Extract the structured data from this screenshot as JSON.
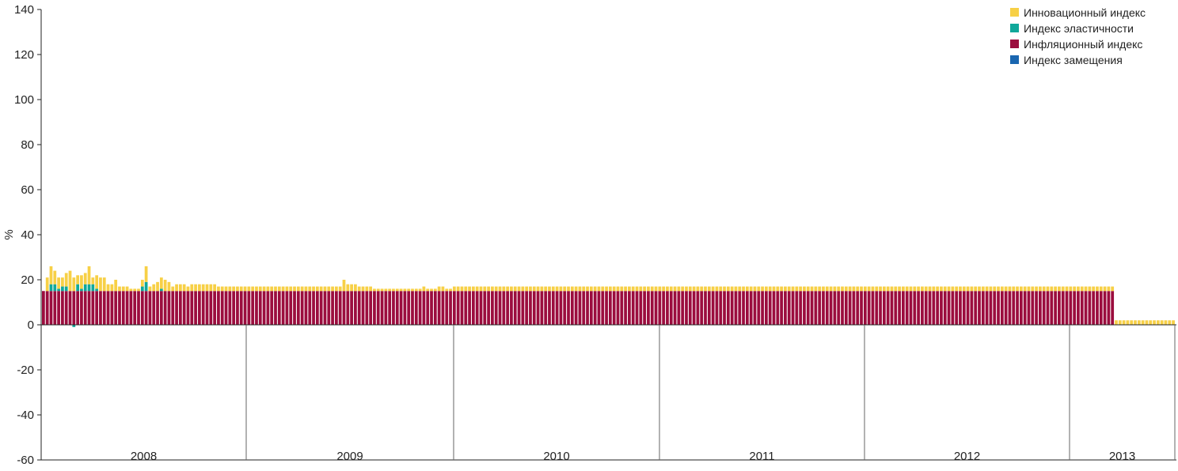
{
  "chart_data": {
    "type": "bar",
    "stacked": true,
    "ylabel": "%",
    "ylim": [
      -60,
      140
    ],
    "yticks": [
      -60,
      -40,
      -20,
      0,
      20,
      40,
      60,
      80,
      100,
      120,
      140
    ],
    "grid": false,
    "legend_position": "top-right",
    "years": [
      "2008",
      "2009",
      "2010",
      "2011",
      "2012",
      "2013"
    ],
    "x_period_note": "weekly bars",
    "series": [
      {
        "name": "Инновационный индекс",
        "color": "#f7d046",
        "values": [
          0,
          6,
          8,
          6,
          5,
          4,
          6,
          9,
          6,
          4,
          6,
          5,
          8,
          3,
          6,
          6,
          6,
          3,
          3,
          5,
          2,
          2,
          2,
          1,
          1,
          1,
          3,
          7,
          2,
          3,
          4,
          5,
          5,
          4,
          2,
          3,
          3,
          3,
          2,
          3,
          3,
          3,
          3,
          3,
          3,
          3,
          2,
          2,
          2,
          2,
          2,
          2,
          2,
          2,
          2,
          2,
          2,
          2,
          2,
          2,
          2,
          2,
          2,
          2,
          2,
          2,
          2,
          2,
          2,
          2,
          2,
          2,
          2,
          2,
          2,
          2,
          2,
          2,
          2,
          5,
          3,
          3,
          3,
          2,
          2,
          2,
          2,
          1,
          1,
          1,
          1,
          1,
          1,
          1,
          1,
          1,
          1,
          1,
          1,
          1,
          2,
          1,
          1,
          1,
          2,
          2,
          1,
          1,
          2,
          2,
          2,
          2,
          2,
          2,
          2,
          2,
          2,
          2,
          2,
          2,
          2,
          2,
          2,
          2,
          2,
          2,
          2,
          2,
          2,
          2,
          2,
          2,
          2,
          2,
          2,
          2,
          2,
          2,
          2,
          2,
          2,
          2,
          2,
          2,
          2,
          2,
          2,
          2,
          2,
          2,
          2,
          2,
          2,
          2,
          2,
          2,
          2,
          2,
          2,
          2,
          2,
          2,
          2,
          2,
          2,
          2,
          2,
          2,
          2,
          2,
          2,
          2,
          2,
          2,
          2,
          2,
          2,
          2,
          2,
          2,
          2,
          2,
          2,
          2,
          2,
          2,
          2,
          2,
          2,
          2,
          2,
          2,
          2,
          2,
          2,
          2,
          2,
          2,
          2,
          2,
          2,
          2,
          2,
          2,
          2,
          2,
          2,
          2,
          2,
          2,
          2,
          2,
          2,
          2,
          2,
          2,
          2,
          2,
          2,
          2,
          2,
          2,
          2,
          2,
          2,
          2,
          2,
          2,
          2,
          2,
          2,
          2,
          2,
          2,
          2,
          2,
          2,
          2,
          2,
          2,
          2,
          2,
          2,
          2,
          2,
          2,
          2,
          2,
          2,
          2,
          2,
          2,
          2,
          2,
          2,
          2,
          2,
          2,
          2,
          2,
          2,
          2,
          2,
          2,
          2,
          2,
          2,
          2,
          2,
          2,
          2,
          2,
          2,
          2,
          2,
          2,
          2,
          2,
          2,
          2,
          2,
          2,
          2,
          2,
          2,
          2,
          2,
          2,
          2,
          2,
          2,
          2,
          2,
          2,
          2,
          2,
          2,
          2
        ]
      },
      {
        "name": "Индекс эластичности",
        "color": "#10a89a",
        "values": [
          0,
          0,
          3,
          3,
          1,
          2,
          2,
          0,
          -1,
          3,
          1,
          3,
          3,
          3,
          1,
          0,
          0,
          0,
          0,
          0,
          0,
          0,
          0,
          0,
          0,
          0,
          2,
          4,
          0,
          0,
          0,
          1,
          0,
          0,
          0,
          0,
          0,
          0,
          0,
          0,
          0,
          0,
          0,
          0,
          0,
          0,
          0,
          0,
          0,
          0,
          0,
          0,
          0,
          0,
          0,
          0,
          0,
          0,
          0,
          0,
          0,
          0,
          0,
          0,
          0,
          0,
          0,
          0,
          0,
          0,
          0,
          0,
          0,
          0,
          0,
          0,
          0,
          0,
          0,
          0,
          0,
          0,
          0,
          0,
          0,
          0,
          0,
          0,
          0,
          0,
          0,
          0,
          0,
          0,
          0,
          0,
          0,
          0,
          0,
          0,
          0,
          0,
          0,
          0,
          0,
          0,
          0,
          0,
          0,
          0,
          0,
          0,
          0,
          0,
          0,
          0,
          0,
          0,
          0,
          0,
          0,
          0,
          0,
          0,
          0,
          0,
          0,
          0,
          0,
          0,
          0,
          0,
          0,
          0,
          0,
          0,
          0,
          0,
          0,
          0,
          0,
          0,
          0,
          0,
          0,
          0,
          0,
          0,
          0,
          0,
          0,
          0,
          0,
          0,
          0,
          0,
          0,
          0,
          0,
          0,
          0,
          0,
          0,
          0,
          0,
          0,
          0,
          0,
          0,
          0,
          0,
          0,
          0,
          0,
          0,
          0,
          0,
          0,
          0,
          0,
          0,
          0,
          0,
          0,
          0,
          0,
          0,
          0,
          0,
          0,
          0,
          0,
          0,
          0,
          0,
          0,
          0,
          0,
          0,
          0,
          0,
          0,
          0,
          0,
          0,
          0,
          0,
          0,
          0,
          0,
          0,
          0,
          0,
          0,
          0,
          0,
          0,
          0,
          0,
          0,
          0,
          0,
          0,
          0,
          0,
          0,
          0,
          0,
          0,
          0,
          0,
          0,
          0,
          0,
          0,
          0,
          0,
          0,
          0,
          0,
          0,
          0,
          0,
          0,
          0,
          0,
          0,
          0,
          0,
          0,
          0,
          0,
          0,
          0,
          0,
          0,
          0,
          0,
          0,
          0,
          0,
          0,
          0,
          0,
          0,
          0,
          0,
          0,
          0,
          0,
          0,
          0,
          0,
          0,
          0,
          0,
          0,
          0,
          0,
          0,
          0,
          0,
          0,
          0,
          0,
          0,
          0,
          0,
          0,
          0,
          0,
          0,
          0,
          0,
          0,
          0,
          0,
          0
        ]
      },
      {
        "name": "Инфляционный индекс",
        "color": "#9b0d3e",
        "values": [
          15,
          15,
          15,
          15,
          15,
          15,
          15,
          15,
          15,
          15,
          15,
          15,
          15,
          15,
          15,
          15,
          15,
          15,
          15,
          15,
          15,
          15,
          15,
          15,
          15,
          15,
          15,
          15,
          15,
          15,
          15,
          15,
          15,
          15,
          15,
          15,
          15,
          15,
          15,
          15,
          15,
          15,
          15,
          15,
          15,
          15,
          15,
          15,
          15,
          15,
          15,
          15,
          15,
          15,
          15,
          15,
          15,
          15,
          15,
          15,
          15,
          15,
          15,
          15,
          15,
          15,
          15,
          15,
          15,
          15,
          15,
          15,
          15,
          15,
          15,
          15,
          15,
          15,
          15,
          15,
          15,
          15,
          15,
          15,
          15,
          15,
          15,
          15,
          15,
          15,
          15,
          15,
          15,
          15,
          15,
          15,
          15,
          15,
          15,
          15,
          15,
          15,
          15,
          15,
          15,
          15,
          15,
          15,
          15,
          15,
          15,
          15,
          15,
          15,
          15,
          15,
          15,
          15,
          15,
          15,
          15,
          15,
          15,
          15,
          15,
          15,
          15,
          15,
          15,
          15,
          15,
          15,
          15,
          15,
          15,
          15,
          15,
          15,
          15,
          15,
          15,
          15,
          15,
          15,
          15,
          15,
          15,
          15,
          15,
          15,
          15,
          15,
          15,
          15,
          15,
          15,
          15,
          15,
          15,
          15,
          15,
          15,
          15,
          15,
          15,
          15,
          15,
          15,
          15,
          15,
          15,
          15,
          15,
          15,
          15,
          15,
          15,
          15,
          15,
          15,
          15,
          15,
          15,
          15,
          15,
          15,
          15,
          15,
          15,
          15,
          15,
          15,
          15,
          15,
          15,
          15,
          15,
          15,
          15,
          15,
          15,
          15,
          15,
          15,
          15,
          15,
          15,
          15,
          15,
          15,
          15,
          15,
          15,
          15,
          15,
          15,
          15,
          15,
          15,
          15,
          15,
          15,
          15,
          15,
          15,
          15,
          15,
          15,
          15,
          15,
          15,
          15,
          15,
          15,
          15,
          15,
          15,
          15,
          15,
          15,
          15,
          15,
          15,
          15,
          15,
          15,
          15,
          15,
          15,
          15,
          15,
          15,
          15,
          15,
          15,
          15,
          15,
          15,
          15,
          15,
          15,
          15,
          15,
          15,
          15,
          15,
          15,
          15,
          15,
          15,
          15,
          15,
          15,
          15,
          15,
          15,
          15,
          15,
          15,
          15,
          15,
          15
        ]
      },
      {
        "name": "Индекс замещения",
        "color": "#1a66b0",
        "values": [
          0,
          0,
          0,
          0,
          0,
          0,
          0,
          0,
          0,
          0,
          0,
          0,
          0,
          0,
          0,
          0,
          0,
          0,
          0,
          0,
          0,
          0,
          0,
          0,
          0,
          0,
          0,
          0,
          0,
          0,
          0,
          0,
          0,
          0,
          0,
          0,
          0,
          0,
          0,
          0,
          0,
          0,
          0,
          0,
          0,
          0,
          0,
          0,
          0,
          0,
          0,
          0,
          0,
          0,
          0,
          0,
          0,
          0,
          0,
          0,
          0,
          0,
          0,
          0,
          0,
          0,
          0,
          0,
          0,
          0,
          0,
          0,
          0,
          0,
          0,
          0,
          0,
          0,
          0,
          0,
          0,
          0,
          0,
          0,
          0,
          0,
          0,
          0,
          0,
          0,
          0,
          0,
          0,
          0,
          0,
          0,
          0,
          0,
          0,
          0,
          0,
          0,
          0,
          0,
          0,
          0,
          0,
          0,
          0,
          0,
          0,
          0,
          0,
          0,
          0,
          0,
          0,
          0,
          0,
          0,
          0,
          0,
          0,
          0,
          0,
          0,
          0,
          0,
          0,
          0,
          0,
          0,
          0,
          0,
          0,
          0,
          0,
          0,
          0,
          0,
          0,
          0,
          0,
          0,
          0,
          0,
          0,
          0,
          0,
          0,
          0,
          0,
          0,
          0,
          0,
          0,
          0,
          0,
          0,
          0,
          0,
          0,
          0,
          0,
          0,
          0,
          0,
          0,
          0,
          0,
          0,
          0,
          0,
          0,
          0,
          0,
          0,
          0,
          0,
          0,
          0,
          0,
          0,
          0,
          0,
          0,
          0,
          0,
          0,
          0,
          0,
          0,
          0,
          0,
          0,
          0,
          0,
          0,
          0,
          0,
          0,
          0,
          0,
          0,
          0,
          0,
          0,
          0,
          0,
          0,
          0,
          0,
          0,
          0,
          0,
          0,
          0,
          0,
          0,
          0,
          0,
          0,
          0,
          0,
          0,
          0,
          0,
          0,
          0,
          0,
          0,
          0,
          0,
          0,
          0,
          0,
          0,
          0,
          0,
          0,
          0,
          0,
          0,
          0,
          0,
          0,
          0,
          0,
          0,
          0,
          0,
          0,
          0,
          0,
          0,
          0,
          0,
          0,
          0,
          0,
          0,
          0,
          0,
          0,
          0,
          0,
          0,
          0,
          0,
          0,
          0,
          0,
          0,
          0,
          0,
          0,
          0,
          0,
          0,
          0,
          0,
          0,
          0
        ]
      }
    ]
  }
}
